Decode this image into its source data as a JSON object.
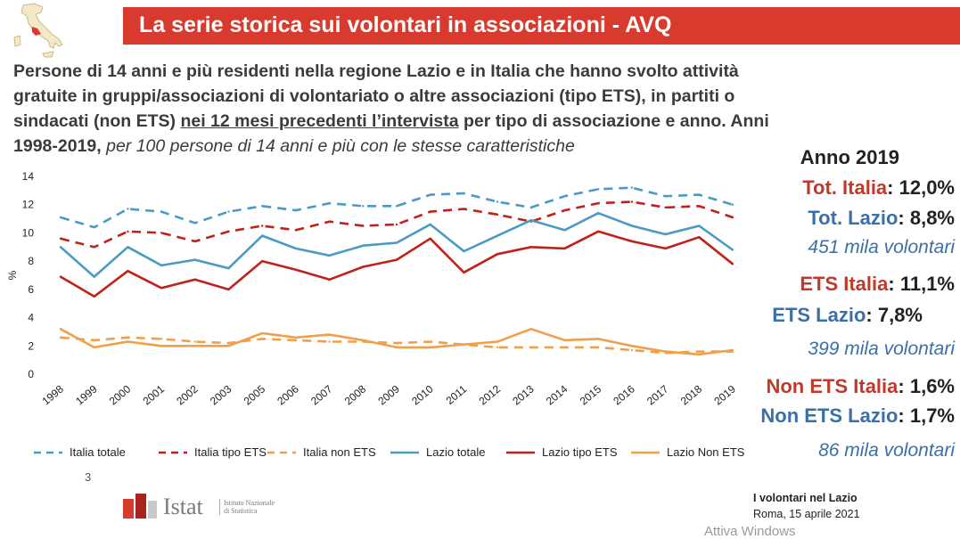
{
  "header": {
    "title": "La serie storica sui volontari in associazioni - AVQ",
    "banner_color": "#d83a2e"
  },
  "subtitle": {
    "part1": "Persone di 14 anni e più residenti nella regione Lazio e in Italia che hanno svolto attività gratuite in gruppi/associazioni di volontariato o altre associazioni (tipo ETS), in partiti o sindacati (non ETS) ",
    "underlined": "nei 12 mesi precedenti l’intervista",
    "part2": " per tipo di associazione e anno. Anni 1998-2019, ",
    "italic": "per 100 persone di 14 anni e più con le stesse caratteristiche"
  },
  "chart_data": {
    "type": "line",
    "ylabel": "%",
    "ylim": [
      0,
      14
    ],
    "yticks": [
      0,
      2,
      4,
      6,
      8,
      10,
      12,
      14
    ],
    "x": [
      "1998",
      "1999",
      "2000",
      "2001",
      "2002",
      "2003",
      "2005",
      "2006",
      "2007",
      "2008",
      "2009",
      "2010",
      "2011",
      "2012",
      "2013",
      "2014",
      "2015",
      "2016",
      "2017",
      "2018",
      "2019"
    ],
    "series": [
      {
        "name": "Italia totale",
        "color": "#4a9ac4",
        "dash": true,
        "values": [
          11.1,
          10.4,
          11.7,
          11.5,
          10.7,
          11.5,
          11.9,
          11.6,
          12.1,
          11.9,
          11.9,
          12.7,
          12.8,
          12.2,
          11.8,
          12.6,
          13.1,
          13.2,
          12.6,
          12.7,
          12.0
        ]
      },
      {
        "name": "Italia tipo ETS",
        "color": "#c0221a",
        "dash": true,
        "values": [
          9.6,
          9.0,
          10.1,
          10.0,
          9.4,
          10.1,
          10.5,
          10.2,
          10.8,
          10.5,
          10.6,
          11.5,
          11.7,
          11.3,
          10.8,
          11.6,
          12.1,
          12.2,
          11.8,
          11.9,
          11.1
        ]
      },
      {
        "name": "Italia non ETS",
        "color": "#f0a04b",
        "dash": true,
        "values": [
          2.6,
          2.4,
          2.6,
          2.5,
          2.3,
          2.2,
          2.5,
          2.4,
          2.3,
          2.3,
          2.2,
          2.3,
          2.1,
          1.9,
          1.9,
          1.9,
          1.9,
          1.7,
          1.5,
          1.6,
          1.6
        ]
      },
      {
        "name": "Lazio totale",
        "color": "#4a9ac4",
        "dash": false,
        "values": [
          9.0,
          6.9,
          9.0,
          7.7,
          8.1,
          7.5,
          9.8,
          8.9,
          8.4,
          9.1,
          9.3,
          10.6,
          8.7,
          9.8,
          10.9,
          10.2,
          11.4,
          10.5,
          9.9,
          10.5,
          8.8
        ]
      },
      {
        "name": "Lazio tipo ETS",
        "color": "#c0221a",
        "dash": false,
        "values": [
          6.9,
          5.5,
          7.3,
          6.1,
          6.7,
          6.0,
          8.0,
          7.4,
          6.7,
          7.6,
          8.1,
          9.6,
          7.2,
          8.5,
          9.0,
          8.9,
          10.1,
          9.4,
          8.9,
          9.7,
          7.8
        ]
      },
      {
        "name": "Lazio Non ETS",
        "color": "#f0a04b",
        "dash": false,
        "values": [
          3.2,
          1.9,
          2.3,
          2.0,
          2.0,
          2.0,
          2.9,
          2.6,
          2.8,
          2.4,
          1.9,
          1.9,
          2.1,
          2.3,
          3.2,
          2.4,
          2.5,
          2.0,
          1.6,
          1.4,
          1.7
        ]
      }
    ]
  },
  "stats": {
    "year": "Anno 2019",
    "tot_italia_label": "Tot. Italia",
    "tot_italia_value": ": 12,0%",
    "tot_lazio_label": "Tot. Lazio",
    "tot_lazio_value": ": 8,8%",
    "tot_vol": "451 mila volontari",
    "ets_italia_label": "ETS Italia",
    "ets_italia_value": ": 11,1%",
    "ets_lazio_label": "ETS Lazio",
    "ets_lazio_value": ": 7,8%",
    "ets_vol": "399 mila volontari",
    "non_ets_italia_label": "Non ETS Italia",
    "non_ets_italia_value": ": 1,6%",
    "non_ets_lazio_label": "Non ETS Lazio",
    "non_ets_lazio_value": ": 1,7%",
    "non_ets_vol": "86 mila volontari"
  },
  "footer": {
    "page_number": "3",
    "logo_word": "Istat",
    "logo_sub": "Istituto Nazionale di Statistica",
    "event_title": "I volontari nel Lazio",
    "event_date": "Roma, 15 aprile 2021",
    "watermark": "Attiva Windows"
  }
}
